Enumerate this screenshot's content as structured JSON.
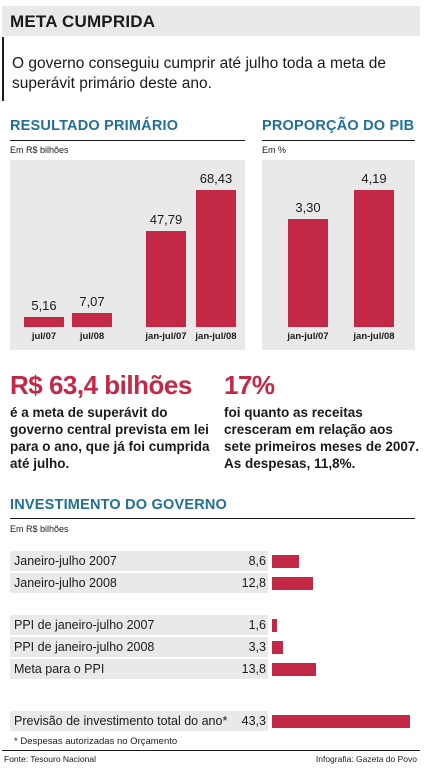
{
  "header": {
    "title": "META CUMPRIDA",
    "intro": "O governo conseguiu cumprir até julho toda a meta de superávit primário deste ano."
  },
  "colors": {
    "bar": "#c32946",
    "section_title": "#1f6f97",
    "panel": "#e9e9e9"
  },
  "chart_data": [
    {
      "type": "bar",
      "title": "RESULTADO PRIMÁRIO",
      "unit": "Em R$ bilhões",
      "categories": [
        "jul/07",
        "jul/08",
        "jan-jul/07",
        "jan-jul/08"
      ],
      "values": [
        5.16,
        7.07,
        47.79,
        68.43
      ],
      "labels": [
        "5,16",
        "7,07",
        "47,79",
        "68,43"
      ],
      "ylim": [
        0,
        80
      ]
    },
    {
      "type": "bar",
      "title": "PROPORÇÃO DO PIB",
      "unit": "Em %",
      "categories": [
        "jan-jul/07",
        "jan-jul/08"
      ],
      "values": [
        3.3,
        4.19
      ],
      "labels": [
        "3,30",
        "4,19"
      ],
      "ylim": [
        0,
        4.9
      ]
    },
    {
      "type": "bar",
      "orientation": "horizontal",
      "title": "INVESTIMENTO DO GOVERNO",
      "unit": "Em R$ bilhões",
      "groups": [
        [
          {
            "label": "Janeiro-julho 2007",
            "value": 8.6,
            "text": "8,6"
          },
          {
            "label": "Janeiro-julho 2008",
            "value": 12.8,
            "text": "12,8"
          }
        ],
        [
          {
            "label": "PPI de janeiro-julho 2007",
            "value": 1.6,
            "text": "1,6"
          },
          {
            "label": "PPI de janeiro-julho 2008",
            "value": 3.3,
            "text": "3,3"
          },
          {
            "label": "Meta para o PPI",
            "value": 13.8,
            "text": "13,8"
          }
        ],
        [
          {
            "label": "Previsão de investimento total do ano*",
            "value": 43.3,
            "text": "43,3"
          }
        ]
      ],
      "xlim": [
        0,
        43.3
      ]
    }
  ],
  "highlights": [
    {
      "big": "R$ 63,4 bilhões",
      "text": "é a meta de superávit do governo central prevista em lei para o ano, que já foi cumprida até julho."
    },
    {
      "big": "17%",
      "text": "foi quanto as receitas cresceram em relação aos sete primeiros meses de 2007. As despesas, 11,8%."
    }
  ],
  "footer": {
    "note": "* Despesas autorizadas no Orçamento",
    "source": "Fonte: Tesouro Nacional",
    "credit": "Infografia: Gazeta do Povo"
  }
}
